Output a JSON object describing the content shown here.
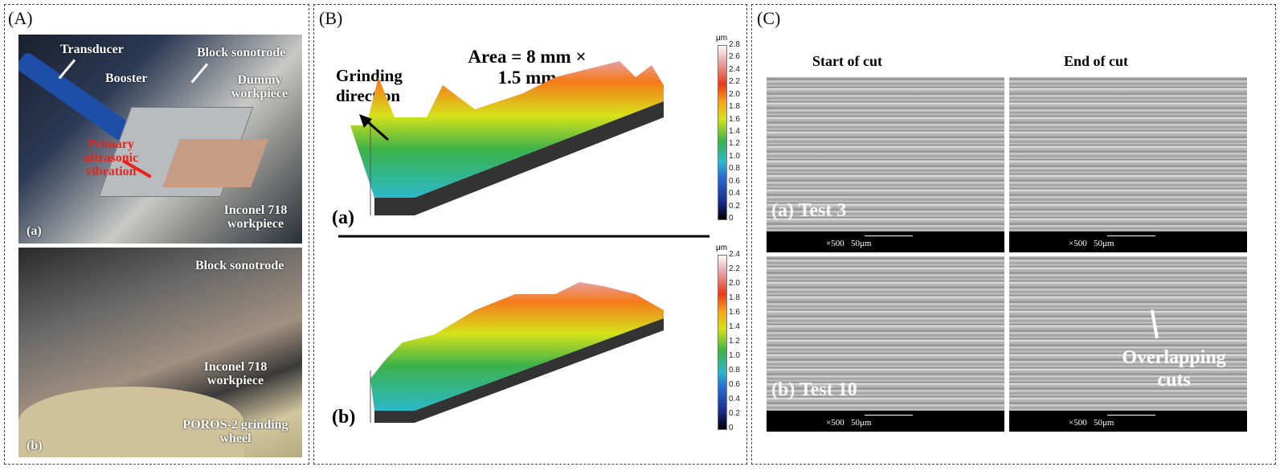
{
  "panel_a": {
    "label": "(A)",
    "photo_a": {
      "tag": "(a)",
      "labels": {
        "transducer": "Transducer",
        "booster": "Booster",
        "block_sonotrode": "Block sonotrode",
        "dummy": "Dummy workpiece",
        "primary": "Primary ultrasonic vibration",
        "inconel": "Inconel 718 workpiece"
      }
    },
    "photo_b": {
      "tag": "(b)",
      "labels": {
        "block_sonotrode": "Block sonotrode",
        "inconel": "Inconel 718 workpiece",
        "wheel": "POROS-2 grinding wheel"
      }
    }
  },
  "panel_b": {
    "label": "(B)",
    "area": "Area = 8 mm × 1.5 mm",
    "direction": "Grinding direction",
    "plot_a": {
      "tag": "(a)",
      "unit": "μm",
      "ticks": [
        "2.8",
        "2.6",
        "2.4",
        "2.2",
        "2.0",
        "1.8",
        "1.6",
        "1.4",
        "1.2",
        "1.0",
        "0.8",
        "0.6",
        "0.4",
        "0.2",
        "0"
      ]
    },
    "plot_b": {
      "tag": "(b)",
      "unit": "μm",
      "ticks": [
        "2.4",
        "2.2",
        "2.0",
        "1.8",
        "1.6",
        "1.4",
        "1.2",
        "1.0",
        "0.8",
        "0.6",
        "0.4",
        "0.2",
        "0"
      ]
    }
  },
  "panel_c": {
    "label": "(C)",
    "col1": "Start of cut",
    "col2": "End of cut",
    "row1": "(a) Test 3",
    "row2": "(b) Test 10",
    "mag": "×500",
    "scale": "50μm",
    "annotation": "Overlapping cuts"
  },
  "colors": {
    "red": "#e8231c"
  }
}
